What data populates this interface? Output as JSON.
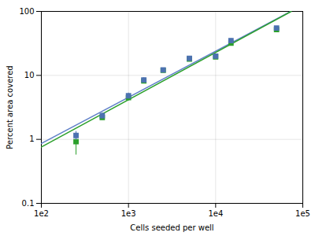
{
  "chart_data": {
    "type": "scatter",
    "xlabel": "Cells seeded per well",
    "ylabel": "Percent area covered",
    "log": true,
    "grid": true,
    "xlim": [
      100,
      100000
    ],
    "ylim": [
      0.1,
      100
    ],
    "xticks": [
      {
        "value": 100,
        "label": "1e2"
      },
      {
        "value": 1000,
        "label": "1e3"
      },
      {
        "value": 10000,
        "label": "1e4"
      },
      {
        "value": 100000,
        "label": "1e5"
      }
    ],
    "yticks": [
      0.1,
      1,
      10,
      100
    ],
    "x": [
      250,
      500,
      1000,
      1500,
      2500,
      5000,
      10000,
      15000,
      50000
    ],
    "series": [
      {
        "type": "line",
        "line_style": "solid",
        "color": "#6080c8",
        "x": [
          100,
          72713
        ],
        "values": [
          0.8649,
          100
        ]
      },
      {
        "type": "line",
        "line_style": "solid",
        "color": "#2ca02c",
        "x": [
          100,
          73693
        ],
        "values": [
          0.7611,
          100
        ]
      },
      {
        "type": "scatter",
        "marker": "square",
        "color": "#2ca02c",
        "values": [
          0.92,
          2.2,
          4.5,
          8.2,
          12.0,
          18.0,
          19.5,
          32.0,
          52.0
        ],
        "errors": [
          0.35,
          0.2,
          0.45,
          0.6,
          0.75,
          0.9,
          0.8,
          2.2,
          2.5
        ]
      },
      {
        "type": "scatter",
        "marker": "square",
        "color": "#4c72b0",
        "values": [
          1.15,
          2.35,
          4.8,
          8.5,
          12.2,
          18.5,
          20.0,
          35.0,
          55.0
        ],
        "errors": [
          0.18,
          0.25,
          0.5,
          0.7,
          0.8,
          1.0,
          0.9,
          2.5,
          3.0
        ]
      }
    ]
  }
}
